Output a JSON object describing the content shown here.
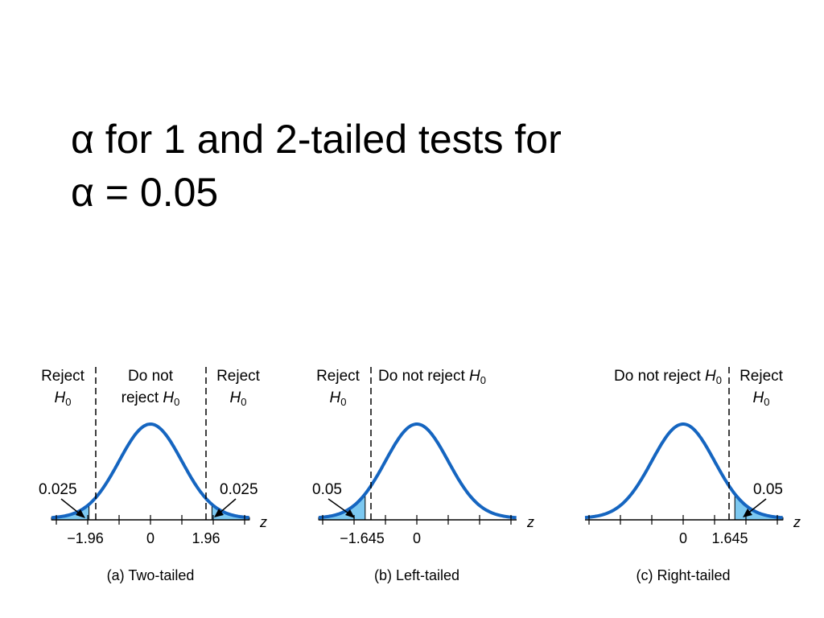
{
  "slide": {
    "title_line1": "α for 1 and 2-tailed tests for",
    "title_line2": "α = 0.05"
  },
  "colors": {
    "curve": "#1565c0",
    "tail_fill": "#7cc8f0",
    "axis": "#000000"
  },
  "panels": [
    {
      "id": "two-tailed",
      "caption": "(a) Two-tailed",
      "axis_variable": "z",
      "regions": {
        "left_reject": {
          "word": "Reject",
          "symbol": "H",
          "subscript": "0"
        },
        "middle": {
          "line1": "Do not",
          "line2_word": "reject",
          "symbol": "H",
          "subscript": "0"
        },
        "right_reject": {
          "word": "Reject",
          "symbol": "H",
          "subscript": "0"
        }
      },
      "tail_areas": {
        "left": "0.025",
        "right": "0.025"
      },
      "ticks": {
        "left": "−1.96",
        "center": "0",
        "right": "1.96"
      },
      "critical_values": [
        -1.96,
        1.96
      ]
    },
    {
      "id": "left-tailed",
      "caption": "(b) Left-tailed",
      "axis_variable": "z",
      "regions": {
        "left_reject": {
          "word": "Reject",
          "symbol": "H",
          "subscript": "0"
        },
        "accept": {
          "text": "Do not reject ",
          "symbol": "H",
          "subscript": "0"
        }
      },
      "tail_areas": {
        "left": "0.05"
      },
      "ticks": {
        "left": "−1.645",
        "center": "0"
      },
      "critical_values": [
        -1.645
      ]
    },
    {
      "id": "right-tailed",
      "caption": "(c) Right-tailed",
      "axis_variable": "z",
      "regions": {
        "accept": {
          "text": "Do not reject ",
          "symbol": "H",
          "subscript": "0"
        },
        "right_reject": {
          "word": "Reject",
          "symbol": "H",
          "subscript": "0"
        }
      },
      "tail_areas": {
        "right": "0.05"
      },
      "ticks": {
        "center": "0",
        "right": "1.645"
      },
      "critical_values": [
        1.645
      ]
    }
  ]
}
